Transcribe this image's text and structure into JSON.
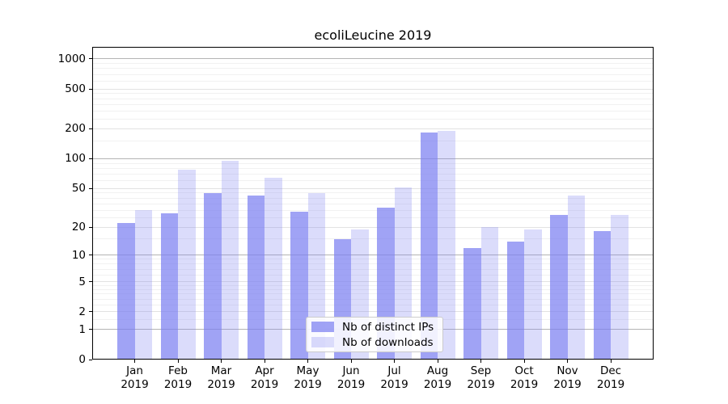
{
  "title": "ecoliLeucine 2019",
  "chart_data": {
    "type": "bar",
    "title": "ecoliLeucine 2019",
    "categories": [
      "Jan 2019",
      "Feb 2019",
      "Mar 2019",
      "Apr 2019",
      "May 2019",
      "Jun 2019",
      "Jul 2019",
      "Aug 2019",
      "Sep 2019",
      "Oct 2019",
      "Nov 2019",
      "Dec 2019"
    ],
    "series": [
      {
        "name": "Nb of distinct IPs",
        "color": "rgba(124,128,241,0.72)",
        "values": [
          22,
          28,
          45,
          42,
          29,
          15,
          32,
          185,
          12,
          14,
          27,
          18
        ]
      },
      {
        "name": "Nb of downloads",
        "color": "rgba(124,128,241,0.28)",
        "values": [
          30,
          77,
          95,
          64,
          45,
          19,
          51,
          190,
          20,
          19,
          42,
          27
        ]
      }
    ],
    "xlabel": "",
    "ylabel": "",
    "y_scale": "log1p",
    "ylim": [
      0,
      1320
    ],
    "y_ticks": [
      0,
      1,
      2,
      5,
      10,
      20,
      50,
      100,
      200,
      500,
      1000
    ],
    "y_minor_subs": [
      1.5,
      2.5,
      3,
      3.5,
      4,
      4.5,
      6,
      7,
      8,
      9
    ],
    "grid": true,
    "legend_position": "lower center"
  },
  "colors": {
    "decade_grid": "#b4b4b4",
    "major_grid": "#e2e2e2",
    "minor_grid": "#f1f1f1",
    "spine": "#000000",
    "background": "#ffffff"
  }
}
